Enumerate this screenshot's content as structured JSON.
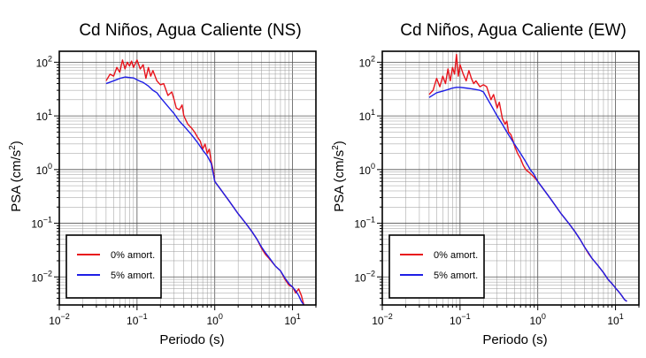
{
  "chart_data": [
    {
      "type": "line",
      "title": "Cd Niños, Agua Caliente (NS)",
      "xlabel": "Periodo (s)",
      "ylabel_base": "PSA (cm/s",
      "ylabel_exp": "2",
      "ylabel_close": ")",
      "xscale": "log",
      "yscale": "log",
      "xlim": [
        0.01,
        20
      ],
      "ylim": [
        0.003,
        160
      ],
      "grid": true,
      "legend_position": "bottom-left",
      "x_ticks": [
        {
          "value": 0.01,
          "base": "10",
          "exp": "−2"
        },
        {
          "value": 0.1,
          "base": "10",
          "exp": "−1"
        },
        {
          "value": 1,
          "base": "10",
          "exp": "0"
        },
        {
          "value": 10,
          "base": "10",
          "exp": "1"
        }
      ],
      "y_ticks": [
        {
          "value": 0.01,
          "base": "10",
          "exp": "−2"
        },
        {
          "value": 0.1,
          "base": "10",
          "exp": "−1"
        },
        {
          "value": 1,
          "base": "10",
          "exp": "0"
        },
        {
          "value": 10,
          "base": "10",
          "exp": "1"
        },
        {
          "value": 100,
          "base": "10",
          "exp": "2"
        }
      ],
      "series": [
        {
          "name": "0% amort.",
          "color": "#e8141c",
          "points": [
            [
              0.04,
              45
            ],
            [
              0.045,
              60
            ],
            [
              0.05,
              55
            ],
            [
              0.055,
              80
            ],
            [
              0.06,
              65
            ],
            [
              0.065,
              110
            ],
            [
              0.07,
              75
            ],
            [
              0.075,
              100
            ],
            [
              0.08,
              85
            ],
            [
              0.085,
              105
            ],
            [
              0.09,
              80
            ],
            [
              0.1,
              110
            ],
            [
              0.11,
              75
            ],
            [
              0.12,
              90
            ],
            [
              0.13,
              50
            ],
            [
              0.14,
              80
            ],
            [
              0.15,
              55
            ],
            [
              0.16,
              70
            ],
            [
              0.18,
              45
            ],
            [
              0.2,
              38
            ],
            [
              0.22,
              40
            ],
            [
              0.25,
              24
            ],
            [
              0.28,
              28
            ],
            [
              0.3,
              20
            ],
            [
              0.32,
              14
            ],
            [
              0.35,
              13
            ],
            [
              0.38,
              16
            ],
            [
              0.4,
              10
            ],
            [
              0.45,
              7
            ],
            [
              0.5,
              6
            ],
            [
              0.55,
              5
            ],
            [
              0.6,
              4
            ],
            [
              0.65,
              3.4
            ],
            [
              0.7,
              2.4
            ],
            [
              0.75,
              3
            ],
            [
              0.8,
              2
            ],
            [
              0.85,
              2.4
            ],
            [
              0.9,
              1.4
            ],
            [
              0.95,
              1.0
            ],
            [
              1,
              0.6
            ],
            [
              1.2,
              0.42
            ],
            [
              1.5,
              0.27
            ],
            [
              2,
              0.15
            ],
            [
              2.5,
              0.1
            ],
            [
              3,
              0.07
            ],
            [
              3.5,
              0.05
            ],
            [
              4,
              0.034
            ],
            [
              4.5,
              0.026
            ],
            [
              5,
              0.022
            ],
            [
              6,
              0.016
            ],
            [
              7,
              0.013
            ],
            [
              8,
              0.009
            ],
            [
              9,
              0.007
            ],
            [
              10,
              0.0065
            ],
            [
              11,
              0.005
            ],
            [
              12,
              0.006
            ],
            [
              13,
              0.0045
            ],
            [
              14,
              0.003
            ]
          ]
        },
        {
          "name": "5% amort.",
          "color": "#1e1ee6",
          "points": [
            [
              0.04,
              40
            ],
            [
              0.05,
              45
            ],
            [
              0.06,
              50
            ],
            [
              0.07,
              53
            ],
            [
              0.08,
              52
            ],
            [
              0.09,
              51
            ],
            [
              0.1,
              47
            ],
            [
              0.11,
              44
            ],
            [
              0.12,
              42
            ],
            [
              0.14,
              36
            ],
            [
              0.16,
              30
            ],
            [
              0.18,
              27
            ],
            [
              0.2,
              22
            ],
            [
              0.25,
              15
            ],
            [
              0.3,
              11
            ],
            [
              0.35,
              8
            ],
            [
              0.4,
              6.5
            ],
            [
              0.5,
              4.5
            ],
            [
              0.6,
              3.2
            ],
            [
              0.7,
              2.3
            ],
            [
              0.8,
              1.8
            ],
            [
              0.9,
              1.3
            ],
            [
              1,
              0.6
            ],
            [
              1.2,
              0.42
            ],
            [
              1.5,
              0.27
            ],
            [
              2,
              0.15
            ],
            [
              2.5,
              0.1
            ],
            [
              3,
              0.07
            ],
            [
              3.5,
              0.05
            ],
            [
              4,
              0.036
            ],
            [
              4.5,
              0.028
            ],
            [
              5,
              0.023
            ],
            [
              6,
              0.016
            ],
            [
              7,
              0.013
            ],
            [
              8,
              0.0095
            ],
            [
              9,
              0.0075
            ],
            [
              10,
              0.0065
            ],
            [
              11,
              0.0055
            ],
            [
              12,
              0.0045
            ],
            [
              13,
              0.0035
            ],
            [
              14,
              0.003
            ]
          ]
        }
      ]
    },
    {
      "type": "line",
      "title": "Cd Niños, Agua Caliente (EW)",
      "xlabel": "Periodo (s)",
      "ylabel_base": "PSA (cm/s",
      "ylabel_exp": "2",
      "ylabel_close": ")",
      "xscale": "log",
      "yscale": "log",
      "xlim": [
        0.01,
        20
      ],
      "ylim": [
        0.003,
        160
      ],
      "grid": true,
      "legend_position": "bottom-left",
      "x_ticks": [
        {
          "value": 0.01,
          "base": "10",
          "exp": "−2"
        },
        {
          "value": 0.1,
          "base": "10",
          "exp": "−1"
        },
        {
          "value": 1,
          "base": "10",
          "exp": "0"
        },
        {
          "value": 10,
          "base": "10",
          "exp": "1"
        }
      ],
      "y_ticks": [
        {
          "value": 0.01,
          "base": "10",
          "exp": "−2"
        },
        {
          "value": 0.1,
          "base": "10",
          "exp": "−1"
        },
        {
          "value": 1,
          "base": "10",
          "exp": "0"
        },
        {
          "value": 10,
          "base": "10",
          "exp": "1"
        },
        {
          "value": 100,
          "base": "10",
          "exp": "2"
        }
      ],
      "series": [
        {
          "name": "0% amort.",
          "color": "#e8141c",
          "points": [
            [
              0.04,
              25
            ],
            [
              0.045,
              30
            ],
            [
              0.05,
              50
            ],
            [
              0.055,
              35
            ],
            [
              0.06,
              55
            ],
            [
              0.065,
              40
            ],
            [
              0.07,
              75
            ],
            [
              0.075,
              45
            ],
            [
              0.08,
              80
            ],
            [
              0.085,
              60
            ],
            [
              0.09,
              140
            ],
            [
              0.095,
              55
            ],
            [
              0.1,
              90
            ],
            [
              0.11,
              60
            ],
            [
              0.12,
              45
            ],
            [
              0.13,
              70
            ],
            [
              0.14,
              50
            ],
            [
              0.15,
              40
            ],
            [
              0.16,
              45
            ],
            [
              0.18,
              35
            ],
            [
              0.2,
              38
            ],
            [
              0.22,
              35
            ],
            [
              0.25,
              20
            ],
            [
              0.27,
              25
            ],
            [
              0.3,
              14
            ],
            [
              0.32,
              18
            ],
            [
              0.35,
              9
            ],
            [
              0.38,
              7
            ],
            [
              0.4,
              8
            ],
            [
              0.42,
              5
            ],
            [
              0.45,
              4.5
            ],
            [
              0.48,
              3.5
            ],
            [
              0.5,
              2.8
            ],
            [
              0.55,
              2
            ],
            [
              0.6,
              1.6
            ],
            [
              0.65,
              1.2
            ],
            [
              0.7,
              1.0
            ],
            [
              0.8,
              0.85
            ],
            [
              0.9,
              0.72
            ],
            [
              1,
              0.6
            ],
            [
              1.2,
              0.42
            ],
            [
              1.5,
              0.27
            ],
            [
              2,
              0.15
            ],
            [
              2.5,
              0.1
            ],
            [
              3,
              0.07
            ],
            [
              3.5,
              0.05
            ],
            [
              4,
              0.036
            ],
            [
              4.5,
              0.027
            ],
            [
              5,
              0.022
            ],
            [
              6,
              0.016
            ],
            [
              7,
              0.012
            ],
            [
              8,
              0.009
            ],
            [
              9,
              0.0075
            ],
            [
              10,
              0.0062
            ],
            [
              11,
              0.0053
            ],
            [
              12,
              0.0045
            ],
            [
              13,
              0.0038
            ],
            [
              14,
              0.0035
            ]
          ]
        },
        {
          "name": "5% amort.",
          "color": "#1e1ee6",
          "points": [
            [
              0.04,
              22
            ],
            [
              0.05,
              27
            ],
            [
              0.06,
              29
            ],
            [
              0.07,
              31
            ],
            [
              0.08,
              33
            ],
            [
              0.09,
              34
            ],
            [
              0.1,
              34
            ],
            [
              0.12,
              33
            ],
            [
              0.14,
              32
            ],
            [
              0.16,
              31
            ],
            [
              0.18,
              30
            ],
            [
              0.2,
              28
            ],
            [
              0.22,
              22
            ],
            [
              0.25,
              16
            ],
            [
              0.3,
              10
            ],
            [
              0.35,
              7
            ],
            [
              0.4,
              5
            ],
            [
              0.5,
              3
            ],
            [
              0.6,
              2
            ],
            [
              0.7,
              1.4
            ],
            [
              0.8,
              1.0
            ],
            [
              0.9,
              0.8
            ],
            [
              1,
              0.6
            ],
            [
              1.2,
              0.42
            ],
            [
              1.5,
              0.27
            ],
            [
              2,
              0.15
            ],
            [
              2.5,
              0.1
            ],
            [
              3,
              0.07
            ],
            [
              3.5,
              0.05
            ],
            [
              4,
              0.036
            ],
            [
              4.5,
              0.028
            ],
            [
              5,
              0.022
            ],
            [
              6,
              0.016
            ],
            [
              7,
              0.012
            ],
            [
              8,
              0.009
            ],
            [
              9,
              0.0075
            ],
            [
              10,
              0.0062
            ],
            [
              11,
              0.0053
            ],
            [
              12,
              0.0045
            ],
            [
              13,
              0.0038
            ],
            [
              14,
              0.0035
            ]
          ]
        }
      ]
    }
  ]
}
